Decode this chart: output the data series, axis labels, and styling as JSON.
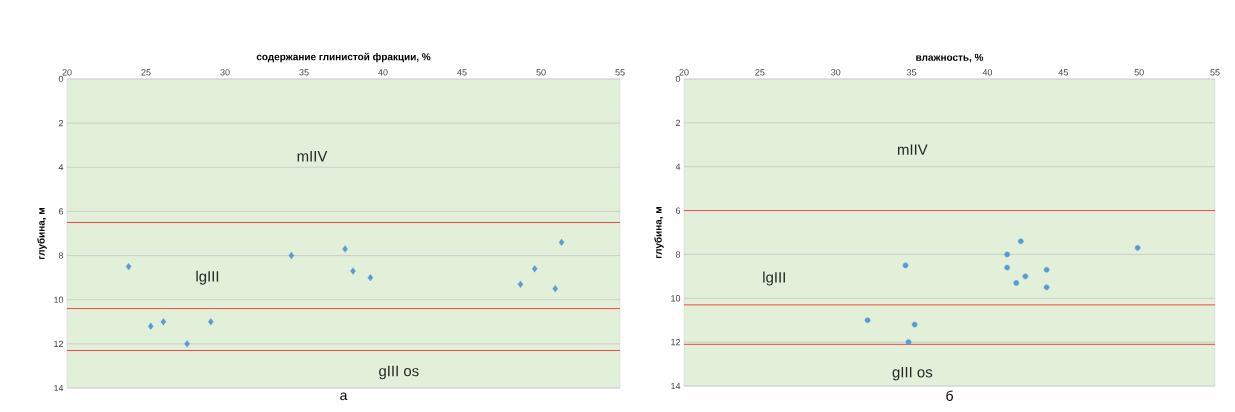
{
  "chart_data": [
    {
      "type": "scatter",
      "xlabel": "содержание глинистой фракции, %",
      "ylabel": "глубина, м",
      "marker": "diamond",
      "grid": "y",
      "xlim": [
        20,
        55
      ],
      "xticks": [
        20,
        25,
        30,
        35,
        40,
        45,
        50,
        55
      ],
      "ylim": [
        14,
        0
      ],
      "yticks": [
        0,
        2,
        4,
        6,
        8,
        10,
        12,
        14
      ],
      "series": [
        {
          "color": "#5b9bd5",
          "x": [
            23.9,
            34.2,
            37.6,
            38.1,
            39.2,
            51.3,
            49.6,
            48.7,
            50.9,
            25.3,
            26.1,
            29.1,
            27.6
          ],
          "values": [
            8.5,
            8.0,
            7.7,
            8.7,
            9.0,
            7.4,
            8.6,
            9.3,
            9.5,
            11.2,
            11.0,
            11.0,
            12.0
          ]
        }
      ],
      "ref_lines": [
        {
          "axis": "y",
          "value": 6.5,
          "color": "#f0483e"
        },
        {
          "axis": "y",
          "value": 10.4,
          "color": "#f0483e"
        },
        {
          "axis": "y",
          "value": 12.3,
          "color": "#f0483e"
        }
      ],
      "annotations": [
        "mIIV",
        "lgIII",
        "gIII os",
        "а"
      ]
    },
    {
      "type": "scatter",
      "xlabel": "влажность, %",
      "ylabel": "глубина, м",
      "marker": "circle",
      "grid": "y",
      "xlim": [
        20,
        55
      ],
      "xticks": [
        20,
        25,
        30,
        35,
        40,
        45,
        50,
        55
      ],
      "ylim": [
        14,
        0
      ],
      "yticks": [
        0,
        2,
        4,
        6,
        8,
        10,
        12,
        14
      ],
      "series": [
        {
          "color": "#5b9bd5",
          "x": [
            34.6,
            42.2,
            41.3,
            41.3,
            42.5,
            41.9,
            43.9,
            43.9,
            49.9,
            32.1,
            35.2,
            34.8
          ],
          "values": [
            8.5,
            7.4,
            8.0,
            8.6,
            9.0,
            9.3,
            8.7,
            9.5,
            7.7,
            11.0,
            11.2,
            12.0
          ]
        }
      ],
      "ref_lines": [
        {
          "axis": "y",
          "value": 6.0,
          "color": "#f0483e"
        },
        {
          "axis": "y",
          "value": 10.3,
          "color": "#f0483e"
        },
        {
          "axis": "y",
          "value": 12.1,
          "color": "#f0483e"
        }
      ],
      "annotations": [
        "mIIV",
        "lgIII",
        "gIII os",
        "б"
      ]
    }
  ]
}
